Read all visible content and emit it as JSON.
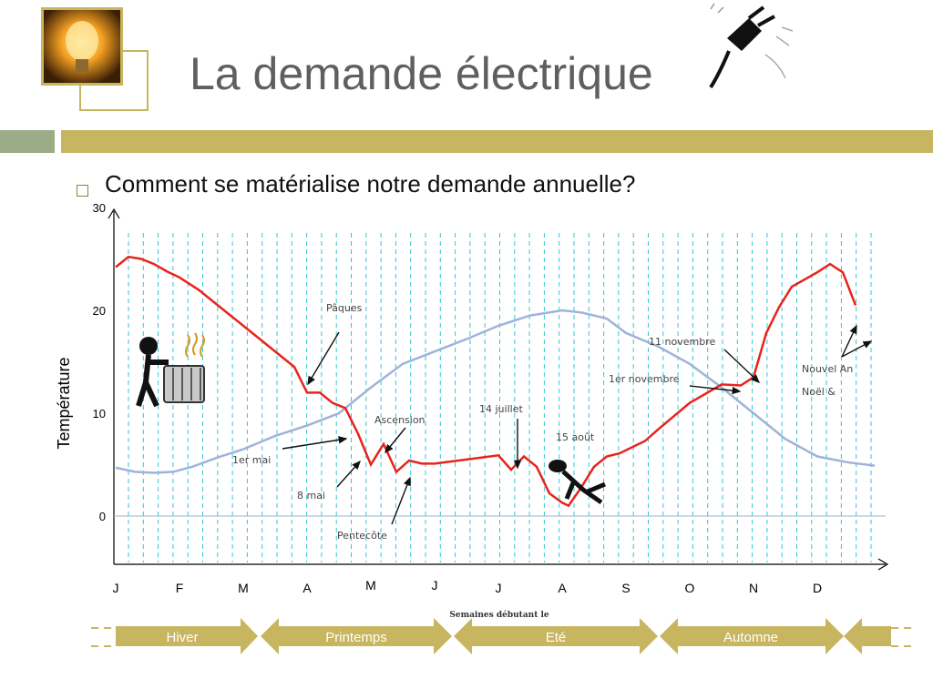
{
  "slide": {
    "title": "La demande électrique",
    "bullet": "Comment se matérialise notre demande annuelle?"
  },
  "colors": {
    "accent_gold": "#c8b560",
    "accent_green": "#9bac86",
    "demand_line": "#e8231c",
    "temperature_line": "#9fb3d9",
    "grid_cyan": "#35c6d6"
  },
  "icons": [
    "light-bulb-icon",
    "power-plug-icon",
    "radiator-person-icon",
    "sunbather-icon"
  ],
  "chart_data": {
    "type": "line",
    "ylabel": "Température",
    "xlabel": "Semaines débutant le",
    "ylim": [
      -5,
      30
    ],
    "yticks": [
      0,
      10,
      20,
      30
    ],
    "month_labels": [
      "J",
      "F",
      "M",
      "A",
      "M",
      "J",
      "J",
      "A",
      "S",
      "O",
      "N",
      "D"
    ],
    "grid": true,
    "series": [
      {
        "key": "demand",
        "color": "#e8231c",
        "x": [
          0,
          0.2,
          0.4,
          0.6,
          0.8,
          1.0,
          1.3,
          1.6,
          2.0,
          2.4,
          2.8,
          3.0,
          3.2,
          3.4,
          3.6,
          3.8,
          4.0,
          4.2,
          4.4,
          4.6,
          4.8,
          5.0,
          5.5,
          6.0,
          6.2,
          6.4,
          6.6,
          6.8,
          7.0,
          7.1,
          7.3,
          7.5,
          7.7,
          7.9,
          8.1,
          8.3,
          8.5,
          9.0,
          9.5,
          9.8,
          10.0,
          10.2,
          10.4,
          10.6,
          11.0,
          11.2,
          11.4,
          11.6
        ],
        "y": [
          24.2,
          25.2,
          25.0,
          24.5,
          23.8,
          23.2,
          22.0,
          20.5,
          18.5,
          16.5,
          14.5,
          12.0,
          12.0,
          11.0,
          10.5,
          8.0,
          5.0,
          7.0,
          4.3,
          5.4,
          5.1,
          5.1,
          5.5,
          5.9,
          4.5,
          5.8,
          4.8,
          2.2,
          1.3,
          1.0,
          2.8,
          4.8,
          5.8,
          6.1,
          6.7,
          7.3,
          8.4,
          11.0,
          12.8,
          12.7,
          13.5,
          17.8,
          20.3,
          22.3,
          23.7,
          24.5,
          23.7,
          20.5
        ]
      },
      {
        "key": "temperature",
        "color": "#9fb3d9",
        "x": [
          0,
          0.3,
          0.6,
          0.9,
          1.2,
          1.6,
          2.0,
          2.5,
          3.0,
          3.5,
          4.0,
          4.5,
          5.0,
          5.5,
          6.0,
          6.5,
          7.0,
          7.3,
          7.7,
          8.0,
          8.5,
          9.0,
          9.5,
          10.0,
          10.5,
          11.0,
          11.5,
          11.9
        ],
        "y": [
          4.7,
          4.3,
          4.2,
          4.3,
          4.8,
          5.7,
          6.5,
          7.8,
          8.8,
          10.0,
          12.5,
          14.8,
          16.0,
          17.2,
          18.5,
          19.5,
          20.0,
          19.8,
          19.2,
          17.8,
          16.5,
          14.8,
          12.5,
          10.0,
          7.5,
          5.8,
          5.2,
          4.9
        ]
      }
    ],
    "annotations": [
      "Pâques",
      "1er mai",
      "8 mai",
      "Ascension",
      "Pentecôte",
      "14 juillet",
      "15 août",
      "1er novembre",
      "11 novembre",
      "Nouvel An",
      "Noël &"
    ],
    "seasons": [
      "Hiver",
      "Printemps",
      "Eté",
      "Automne"
    ]
  }
}
